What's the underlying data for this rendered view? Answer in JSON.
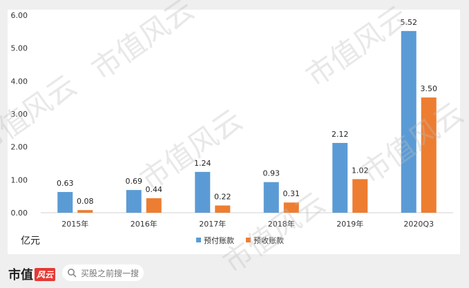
{
  "chart_data": {
    "type": "bar",
    "categories": [
      "2015年",
      "2016年",
      "2017年",
      "2018年",
      "2019年",
      "2020Q3"
    ],
    "series": [
      {
        "name": "预付账款",
        "values": [
          0.63,
          0.69,
          1.24,
          0.93,
          2.12,
          5.52
        ],
        "color": "#5b9bd5"
      },
      {
        "name": "预收账款",
        "values": [
          0.08,
          0.44,
          0.22,
          0.31,
          1.02,
          3.5
        ],
        "color": "#ed7d31"
      }
    ],
    "ylim": [
      0,
      6
    ],
    "yticks": [
      "0.00",
      "1.00",
      "2.00",
      "3.00",
      "4.00",
      "5.00",
      "6.00"
    ],
    "unit_label": "亿元",
    "legend_position": "bottom-center",
    "grid": false
  },
  "watermark": "市值风云",
  "footer": {
    "brand_text": "市值",
    "brand_mark": "风云",
    "search_placeholder": "买股之前搜一搜"
  }
}
